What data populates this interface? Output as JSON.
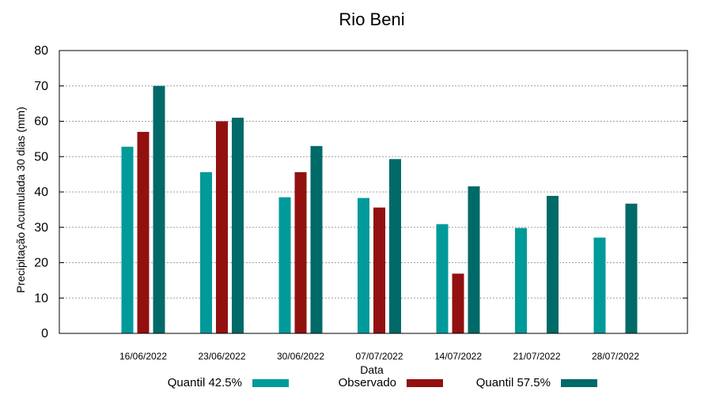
{
  "chart_data": {
    "type": "bar",
    "title": "Rio Beni",
    "xlabel": "Data",
    "ylabel": "Precipitação Acumulada 30 dias (mm)",
    "ylim": [
      0,
      80
    ],
    "yticks": [
      0,
      10,
      20,
      30,
      40,
      50,
      60,
      70,
      80
    ],
    "grid": true,
    "legend_position": "bottom",
    "categories": [
      "16/06/2022",
      "23/06/2022",
      "30/06/2022",
      "07/07/2022",
      "14/07/2022",
      "21/07/2022",
      "28/07/2022"
    ],
    "series": [
      {
        "name": "Quantil 42.5%",
        "color": "#009a9a",
        "values": [
          52.8,
          45.6,
          38.5,
          38.3,
          30.9,
          29.8,
          27.1
        ]
      },
      {
        "name": "Observado",
        "color": "#931010",
        "values": [
          57.0,
          60.0,
          45.6,
          35.6,
          16.9,
          null,
          null
        ]
      },
      {
        "name": "Quantil 57.5%",
        "color": "#006a68",
        "values": [
          70.0,
          61.0,
          53.0,
          49.3,
          41.6,
          38.9,
          36.7
        ]
      }
    ]
  }
}
